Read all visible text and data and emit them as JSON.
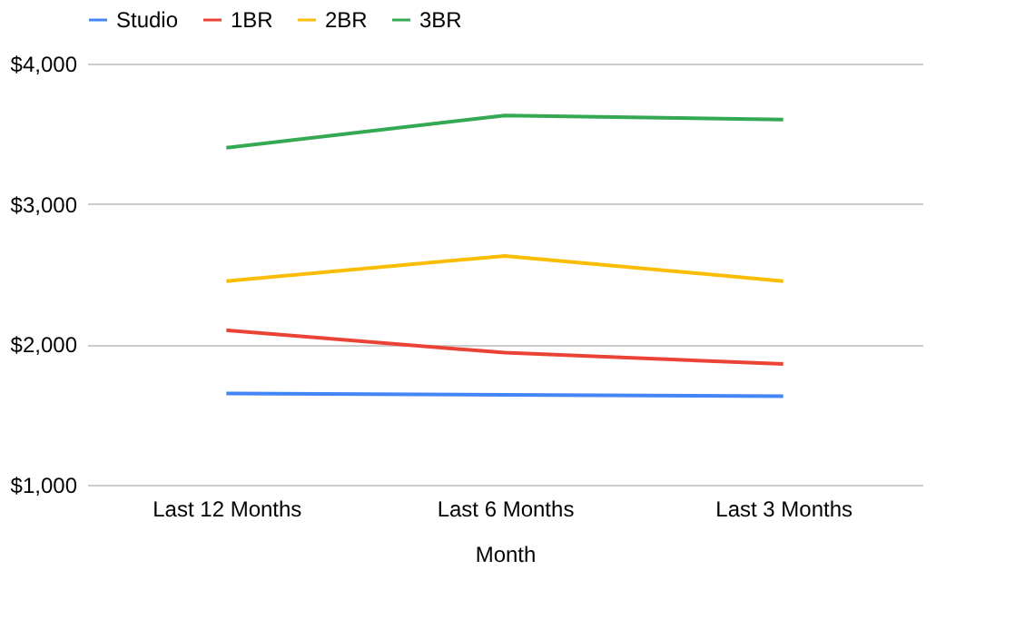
{
  "chart_data": {
    "type": "line",
    "xlabel": "Month",
    "categories": [
      "Last 12 Months",
      "Last 6 Months",
      "Last 3 Months"
    ],
    "series": [
      {
        "name": "Studio",
        "color": "#4285f4",
        "values": [
          1650,
          1640,
          1630
        ]
      },
      {
        "name": "1BR",
        "color": "#ea4335",
        "values": [
          2100,
          1940,
          1860
        ]
      },
      {
        "name": "2BR",
        "color": "#fbbc04",
        "values": [
          2450,
          2630,
          2450
        ]
      },
      {
        "name": "3BR",
        "color": "#34a853",
        "values": [
          3400,
          3630,
          3600
        ]
      }
    ],
    "ylim": [
      1000,
      4000
    ],
    "yticks": [
      {
        "value": 1000,
        "label": "$1,000"
      },
      {
        "value": 2000,
        "label": "$2,000"
      },
      {
        "value": 3000,
        "label": "$3,000"
      },
      {
        "value": 4000,
        "label": "$4,000"
      }
    ],
    "grid": "y",
    "legend": "top",
    "marker": "none",
    "line_style": "solid"
  }
}
